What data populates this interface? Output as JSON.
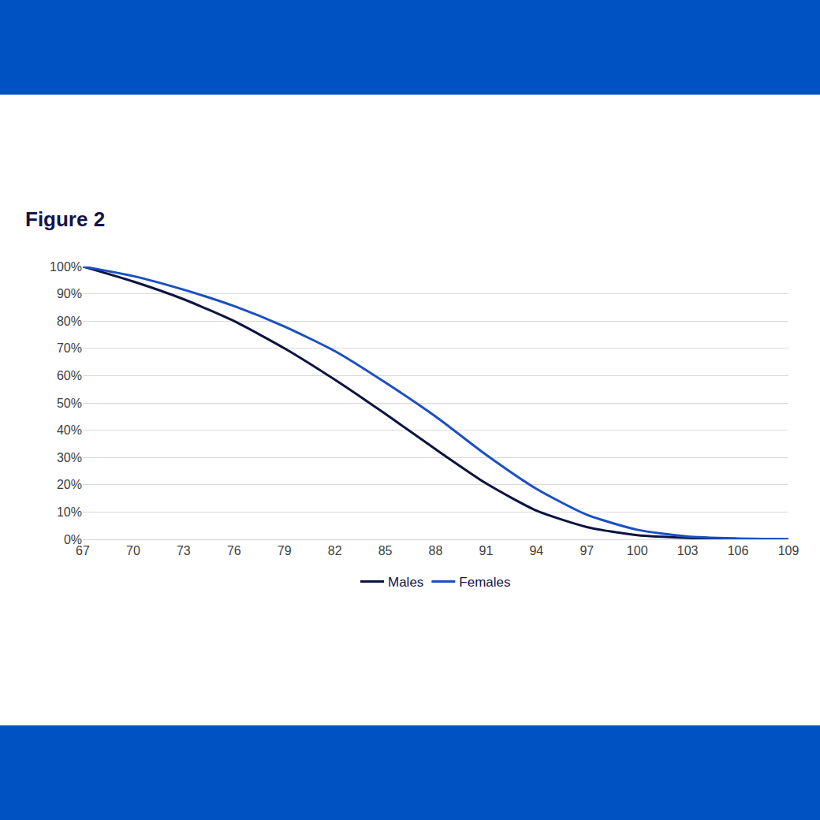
{
  "chart_data": {
    "type": "line",
    "title": "Figure 2",
    "x": [
      67,
      70,
      73,
      76,
      79,
      82,
      85,
      88,
      91,
      94,
      97,
      100,
      103,
      106,
      109
    ],
    "series": [
      {
        "name": "Males",
        "color": "#0b1340",
        "values": [
          100,
          94.5,
          88,
          80,
          70,
          58.5,
          46,
          33,
          20.5,
          10.5,
          4.5,
          1.5,
          0.5,
          0.1,
          0
        ]
      },
      {
        "name": "Females",
        "color": "#1a4fc4",
        "values": [
          100,
          96.5,
          91.5,
          85.5,
          78,
          69,
          57.5,
          45,
          31,
          18.5,
          9,
          3.5,
          1,
          0.3,
          0
        ]
      }
    ],
    "xlim": [
      67,
      109
    ],
    "xticks": [
      67,
      70,
      73,
      76,
      79,
      82,
      85,
      88,
      91,
      94,
      97,
      100,
      103,
      106,
      109
    ],
    "ylim": [
      0,
      100
    ],
    "yticks": [
      {
        "value": 0,
        "label": "0%"
      },
      {
        "value": 10,
        "label": "10%"
      },
      {
        "value": 20,
        "label": "20%"
      },
      {
        "value": 30,
        "label": "30%"
      },
      {
        "value": 40,
        "label": "40%"
      },
      {
        "value": 50,
        "label": "50%"
      },
      {
        "value": 60,
        "label": "60%"
      },
      {
        "value": 70,
        "label": "70%"
      },
      {
        "value": 80,
        "label": "80%"
      },
      {
        "value": 90,
        "label": "90%"
      },
      {
        "value": 100,
        "label": "100%"
      }
    ],
    "grid": "y",
    "legend": "bottom",
    "line_style": "solid"
  }
}
